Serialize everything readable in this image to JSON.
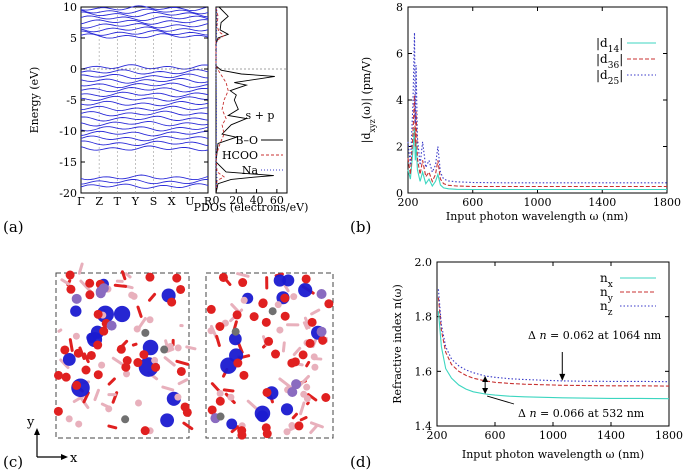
{
  "panels": {
    "a": "(a)",
    "b": "(b)",
    "c": "(c)",
    "d": "(d)"
  },
  "panel_a": {
    "ylabel": "Energy (eV)",
    "band_ticks": [
      "Γ",
      "Z",
      "T",
      "Y",
      "S",
      "X",
      "U",
      "R"
    ],
    "pdos_xlabel": "PDOS (electrons/eV)",
    "pdos_annotation": "s + p",
    "legend": [
      "B–O",
      "HCOO",
      "Na"
    ]
  },
  "panel_c": {
    "axis_y": "y",
    "axis_x": "x"
  },
  "colors": {
    "band": "#2a2ad8",
    "cyan": "#3cd6c0",
    "red": "#c83232",
    "blue": "#3838c8",
    "atom_red": "#e02020",
    "atom_blue": "#1a1ad0",
    "atom_pink": "#e8b0bc",
    "atom_purple": "#8a6bc0",
    "atom_grey": "#707070"
  },
  "chart_data": [
    {
      "id": "band-structure",
      "type": "line",
      "title": "",
      "xlabel": "",
      "ylabel": "Energy (eV)",
      "x_ticks": [
        "Γ",
        "Z",
        "T",
        "Y",
        "S",
        "X",
        "U",
        "R"
      ],
      "ylim": [
        -20,
        10
      ],
      "y_ticks": [
        -20,
        -15,
        -10,
        -5,
        0,
        5,
        10
      ],
      "bands_eV": {
        "conduction": [
          5.3,
          5.8,
          6.4,
          7.0,
          7.6,
          8.2,
          8.8,
          9.3,
          9.8
        ],
        "valence_upper": [
          0.3,
          -0.5,
          -1.2,
          -1.9,
          -2.6,
          -3.3,
          -4.1,
          -4.8,
          -5.6,
          -6.4,
          -7.2,
          -8.0,
          -8.8,
          -9.6,
          -10.4,
          -11.2,
          -12.0,
          -12.8
        ],
        "valence_lower": [
          -17.5,
          -18.2,
          -18.9
        ]
      }
    },
    {
      "id": "pdos",
      "type": "line",
      "xlabel": "PDOS (electrons/eV)",
      "xlim": [
        0,
        70
      ],
      "x_ticks": [
        0,
        20,
        40,
        60
      ],
      "ylim": [
        -20,
        10
      ],
      "legend": [
        "B–O",
        "HCOO",
        "Na"
      ],
      "series": [
        {
          "name": "B–O",
          "energy": [
            -20,
            -18.5,
            -17.8,
            -17.4,
            -17.2,
            -16.6,
            -15,
            -12,
            -11,
            -10.5,
            -9,
            -8,
            -7.5,
            -6.5,
            -5,
            -4.2,
            -3.5,
            -2.6,
            -2.2,
            -1.6,
            -1.2,
            -0.8,
            -0.2,
            0.5,
            4,
            5,
            5.6,
            6.3,
            7.5,
            8.5,
            10
          ],
          "pdos": [
            0,
            2,
            15,
            40,
            57,
            10,
            0,
            2,
            20,
            6,
            15,
            30,
            12,
            22,
            18,
            20,
            14,
            30,
            18,
            42,
            58,
            25,
            5,
            0,
            0,
            2,
            12,
            4,
            5,
            12,
            3
          ]
        },
        {
          "name": "HCOO",
          "energy": [
            -20,
            -18,
            -17.4,
            -16.6,
            -14,
            -12,
            -10.5,
            -9,
            -8,
            -6.5,
            -5,
            -3.5,
            -2.2,
            -1.2,
            -0.4,
            0.5,
            4.5,
            5.4,
            6,
            7,
            8.5,
            10
          ],
          "pdos": [
            0,
            1,
            8,
            1,
            0,
            4,
            8,
            6,
            10,
            6,
            8,
            12,
            10,
            6,
            3,
            0,
            0,
            8,
            3,
            1,
            2,
            0
          ]
        },
        {
          "name": "Na",
          "energy": [
            -20,
            -17.5,
            -16,
            -10,
            -5,
            0,
            5,
            8,
            10
          ],
          "pdos": [
            0,
            1,
            0,
            0.5,
            0.5,
            0,
            0.5,
            1,
            0.5
          ]
        }
      ]
    },
    {
      "id": "shg",
      "type": "line",
      "xlabel": "Input photon wavelength ω (nm)",
      "ylabel": "|d_xyz(ω)| (pm/V)",
      "xlim": [
        200,
        1800
      ],
      "ylim": [
        0,
        8
      ],
      "x_ticks": [
        200,
        600,
        1000,
        1400,
        1800
      ],
      "y_ticks": [
        0,
        2,
        4,
        6,
        8
      ],
      "legend": [
        {
          "base": "|d",
          "sub": "14",
          "end": "|"
        },
        {
          "base": "|d",
          "sub": "36",
          "end": "|"
        },
        {
          "base": "|d",
          "sub": "25",
          "end": "|"
        }
      ],
      "series": [
        {
          "name": "|d14|",
          "x": [
            200,
            215,
            230,
            240,
            245,
            250,
            258,
            265,
            275,
            290,
            310,
            330,
            350,
            370,
            385,
            400,
            420,
            450,
            500,
            600,
            800,
            1000,
            1400,
            1800
          ],
          "y": [
            1.0,
            0.6,
            1.8,
            2.8,
            1.4,
            2.2,
            1.0,
            0.8,
            0.5,
            0.9,
            0.4,
            0.6,
            0.3,
            0.5,
            0.8,
            0.35,
            0.22,
            0.18,
            0.16,
            0.15,
            0.15,
            0.15,
            0.15,
            0.15
          ]
        },
        {
          "name": "|d36|",
          "x": [
            200,
            215,
            230,
            240,
            245,
            250,
            258,
            265,
            275,
            290,
            310,
            330,
            350,
            370,
            385,
            400,
            420,
            450,
            500,
            600,
            800,
            1000,
            1400,
            1800
          ],
          "y": [
            1.5,
            0.8,
            2.5,
            4.2,
            2.0,
            3.5,
            1.5,
            1.2,
            0.8,
            1.4,
            0.7,
            0.9,
            0.5,
            0.8,
            1.4,
            0.6,
            0.4,
            0.33,
            0.3,
            0.28,
            0.28,
            0.28,
            0.28,
            0.28
          ]
        },
        {
          "name": "|d25|",
          "x": [
            200,
            215,
            230,
            240,
            245,
            250,
            258,
            265,
            275,
            290,
            310,
            330,
            350,
            370,
            385,
            400,
            420,
            450,
            500,
            600,
            800,
            1000,
            1400,
            1800
          ],
          "y": [
            2.2,
            1.2,
            3.8,
            6.9,
            3.0,
            5.5,
            2.4,
            1.9,
            1.2,
            2.2,
            1.1,
            1.4,
            0.9,
            1.2,
            2.0,
            0.9,
            0.6,
            0.52,
            0.48,
            0.45,
            0.44,
            0.44,
            0.44,
            0.44
          ]
        }
      ]
    },
    {
      "id": "refractive-index",
      "type": "line",
      "xlabel": "Input photon wavelength ω (nm)",
      "ylabel": "Refractive index n(ω)",
      "xlim": [
        200,
        1800
      ],
      "ylim": [
        1.4,
        2.0
      ],
      "x_ticks": [
        200,
        600,
        1000,
        1400,
        1800
      ],
      "y_ticks": [
        1.4,
        1.6,
        1.8,
        2.0
      ],
      "legend": [
        {
          "base": "n",
          "sub": "x"
        },
        {
          "base": "n",
          "sub": "y"
        },
        {
          "base": "n",
          "sub": "z"
        }
      ],
      "series": [
        {
          "name": "nx",
          "x": [
            210,
            230,
            260,
            300,
            350,
            400,
            450,
            532,
            600,
            700,
            800,
            1000,
            1064,
            1200,
            1400,
            1600,
            1800
          ],
          "y": [
            1.82,
            1.69,
            1.61,
            1.575,
            1.55,
            1.535,
            1.525,
            1.517,
            1.513,
            1.509,
            1.507,
            1.504,
            1.503,
            1.502,
            1.501,
            1.501,
            1.5
          ]
        },
        {
          "name": "ny",
          "x": [
            210,
            230,
            260,
            300,
            350,
            400,
            450,
            532,
            600,
            700,
            800,
            1000,
            1064,
            1200,
            1400,
            1600,
            1800
          ],
          "y": [
            1.87,
            1.75,
            1.67,
            1.625,
            1.6,
            1.585,
            1.575,
            1.565,
            1.56,
            1.556,
            1.553,
            1.55,
            1.549,
            1.548,
            1.547,
            1.547,
            1.546
          ]
        },
        {
          "name": "nz",
          "x": [
            210,
            230,
            260,
            300,
            350,
            400,
            450,
            532,
            600,
            700,
            800,
            1000,
            1064,
            1200,
            1400,
            1600,
            1800
          ],
          "y": [
            1.9,
            1.77,
            1.69,
            1.645,
            1.62,
            1.605,
            1.595,
            1.583,
            1.578,
            1.573,
            1.57,
            1.566,
            1.565,
            1.564,
            1.563,
            1.563,
            1.562
          ]
        }
      ],
      "annotations": [
        {
          "prefix": "Δ ",
          "var": "n",
          "text": " = 0.062 at 1064 nm"
        },
        {
          "prefix": "Δ ",
          "var": "n",
          "text": " = 0.066 at 532 nm"
        }
      ]
    }
  ]
}
